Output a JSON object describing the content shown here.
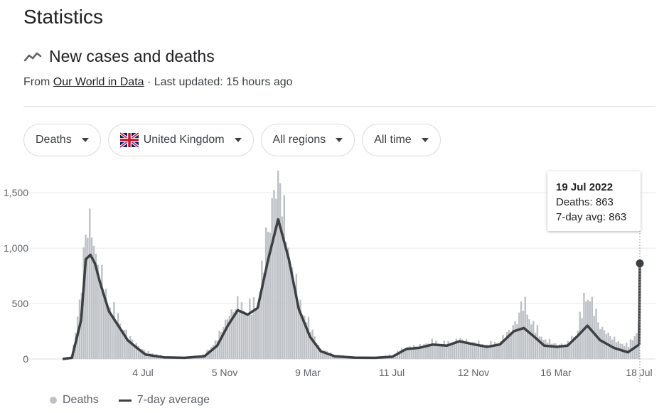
{
  "page": {
    "title": "Statistics"
  },
  "section": {
    "title": "New cases and deaths",
    "icon": "trend-line-icon",
    "source_prefix": "From ",
    "source_link": "Our World in Data",
    "source_suffix": " · Last updated: 15 hours ago"
  },
  "filters": {
    "metric": "Deaths",
    "country": "United Kingdom",
    "region": "All regions",
    "period": "All time"
  },
  "tooltip": {
    "date": "19 Jul 2022",
    "deaths": "Deaths: 863",
    "avg": "7-day avg: 863"
  },
  "legend": {
    "bars": "Deaths",
    "line": "7-day average"
  },
  "colors": {
    "bars": "#bdc1c6",
    "line": "#3c4043",
    "grid": "#e8eaed"
  },
  "chart_data": {
    "type": "bar",
    "x_start": "2020-03-01",
    "x_end": "2022-07-19",
    "ylim": [
      0,
      1700
    ],
    "yticks": [
      0,
      500,
      1000,
      1500
    ],
    "ytick_labels": [
      "0",
      "500",
      "1,000",
      "1,500"
    ],
    "xtick_labels": [
      "4 Jul",
      "5 Nov",
      "9 Mar",
      "11 Jul",
      "12 Nov",
      "16 Mar",
      "18 Jul"
    ],
    "series": [
      {
        "name": "Deaths",
        "kind": "bar",
        "dates": [
          "2020-03-01",
          "2020-03-15",
          "2020-03-29",
          "2020-04-05",
          "2020-04-12",
          "2020-04-19",
          "2020-04-26",
          "2020-05-10",
          "2020-05-24",
          "2020-06-07",
          "2020-06-21",
          "2020-07-04",
          "2020-08-01",
          "2020-09-01",
          "2020-10-01",
          "2020-10-20",
          "2020-11-05",
          "2020-11-20",
          "2020-12-05",
          "2020-12-20",
          "2021-01-05",
          "2021-01-20",
          "2021-02-05",
          "2021-02-20",
          "2021-03-09",
          "2021-03-25",
          "2021-04-15",
          "2021-05-15",
          "2021-06-15",
          "2021-07-11",
          "2021-08-01",
          "2021-08-20",
          "2021-09-10",
          "2021-10-01",
          "2021-10-20",
          "2021-11-12",
          "2021-12-01",
          "2021-12-20",
          "2022-01-10",
          "2022-01-25",
          "2022-02-10",
          "2022-02-25",
          "2022-03-16",
          "2022-04-01",
          "2022-04-15",
          "2022-05-01",
          "2022-05-20",
          "2022-06-10",
          "2022-07-01",
          "2022-07-18",
          "2022-07-19"
        ],
        "values": [
          0,
          30,
          600,
          1150,
          1250,
          1000,
          800,
          520,
          380,
          220,
          130,
          70,
          25,
          15,
          40,
          180,
          380,
          500,
          460,
          520,
          1200,
          1720,
          1000,
          550,
          300,
          90,
          40,
          15,
          10,
          40,
          110,
          120,
          160,
          140,
          180,
          150,
          130,
          160,
          300,
          530,
          300,
          180,
          130,
          140,
          250,
          650,
          300,
          180,
          120,
          300,
          863
        ]
      },
      {
        "name": "7-day average",
        "kind": "line",
        "dates": [
          "2020-03-01",
          "2020-03-15",
          "2020-03-29",
          "2020-04-05",
          "2020-04-12",
          "2020-04-19",
          "2020-04-26",
          "2020-05-10",
          "2020-05-24",
          "2020-06-07",
          "2020-06-21",
          "2020-07-04",
          "2020-08-01",
          "2020-09-01",
          "2020-10-01",
          "2020-10-20",
          "2020-11-05",
          "2020-11-20",
          "2020-12-05",
          "2020-12-20",
          "2021-01-05",
          "2021-01-20",
          "2021-02-05",
          "2021-02-20",
          "2021-03-09",
          "2021-03-25",
          "2021-04-15",
          "2021-05-15",
          "2021-06-15",
          "2021-07-11",
          "2021-08-01",
          "2021-08-20",
          "2021-09-10",
          "2021-10-01",
          "2021-10-20",
          "2021-11-12",
          "2021-12-01",
          "2021-12-20",
          "2022-01-10",
          "2022-01-25",
          "2022-02-10",
          "2022-02-25",
          "2022-03-16",
          "2022-04-01",
          "2022-04-15",
          "2022-05-01",
          "2022-05-20",
          "2022-06-10",
          "2022-07-01",
          "2022-07-18",
          "2022-07-19"
        ],
        "values": [
          0,
          10,
          350,
          900,
          940,
          860,
          700,
          430,
          300,
          170,
          100,
          40,
          15,
          10,
          25,
          120,
          300,
          440,
          400,
          460,
          900,
          1260,
          900,
          450,
          200,
          70,
          25,
          12,
          10,
          20,
          90,
          100,
          130,
          120,
          160,
          130,
          110,
          130,
          250,
          280,
          200,
          120,
          110,
          120,
          200,
          300,
          170,
          100,
          60,
          130,
          863
        ]
      }
    ]
  }
}
